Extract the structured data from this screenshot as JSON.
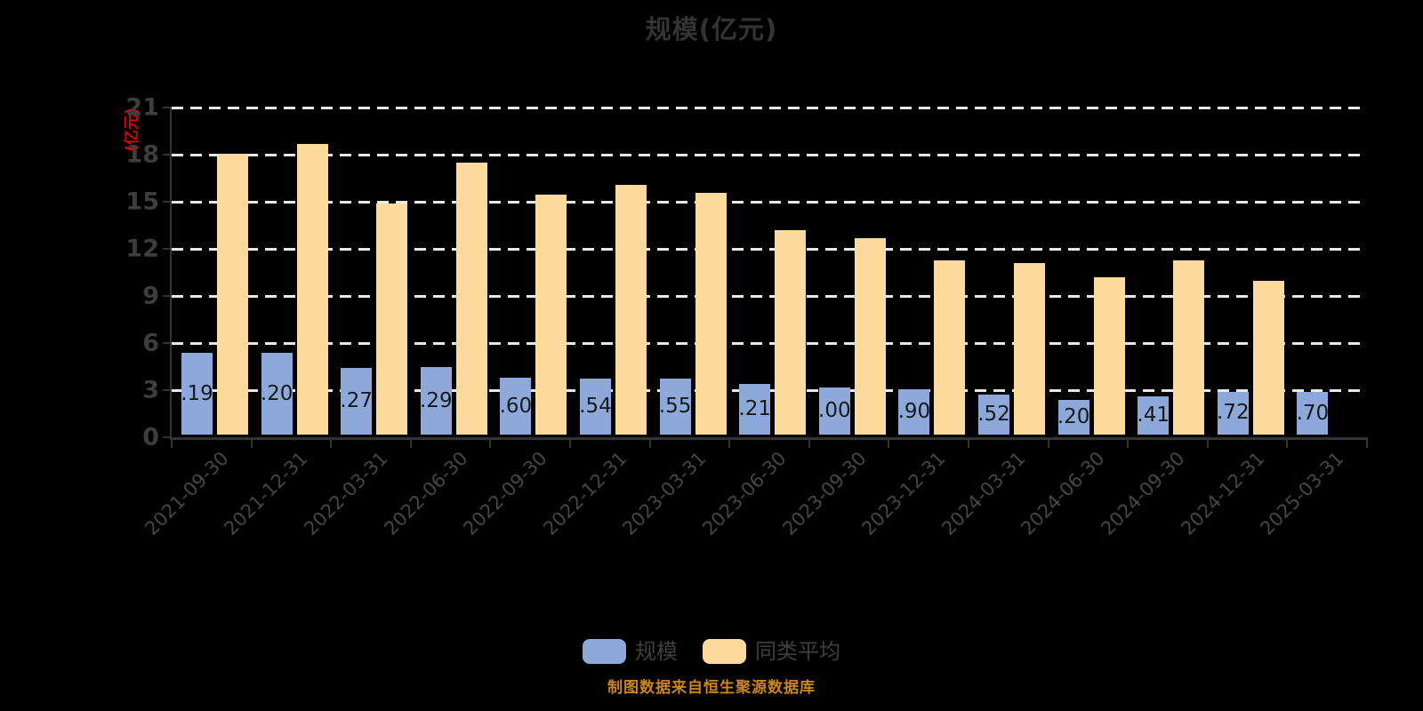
{
  "title": "规模(亿元)",
  "footer": "制图数据来自恒生聚源数据库",
  "y_axis": {
    "name": "(亿元)",
    "ticks": [
      21,
      18,
      15,
      12,
      9,
      6,
      3,
      0
    ],
    "max": 21,
    "min": 0
  },
  "legend": {
    "items": [
      {
        "label": "规模",
        "color": "#8ca9d9"
      },
      {
        "label": "同类平均",
        "color": "#fcd99c"
      }
    ]
  },
  "colors": {
    "background": "#000000",
    "title": "#333333",
    "axis": "#333333",
    "gridline": "#e8e8e8",
    "y_tick_label": "#3d3d3d",
    "x_tick_label": "#464646",
    "bar_value_label": "#1a1a1a",
    "y_axis_name": "#e60000",
    "footer": "#c8861c",
    "scale_bar": "#8ca9d9",
    "average_bar": "#fcd99c"
  },
  "chart_data": {
    "type": "bar",
    "title": "规模(亿元)",
    "categories": [
      "2021-09-30",
      "2021-12-31",
      "2022-03-31",
      "2022-06-30",
      "2022-09-30",
      "2022-12-31",
      "2023-03-31",
      "2023-06-30",
      "2023-09-30",
      "2023-12-31",
      "2024-03-31",
      "2024-06-30",
      "2024-09-30",
      "2024-12-31",
      "2025-03-31"
    ],
    "series": [
      {
        "name": "规模",
        "color": "#8ca9d9",
        "values": [
          5.19,
          5.2,
          4.27,
          4.29,
          3.6,
          3.54,
          3.55,
          3.21,
          3.0,
          2.9,
          2.52,
          2.2,
          2.41,
          2.72,
          2.7
        ],
        "visible_bar_labels": [
          ".19",
          ".20",
          ".27",
          ".29",
          ".60",
          ".54",
          ".55",
          ".21",
          ".00",
          ".90",
          ".52",
          ".20",
          ".41",
          ".72",
          ".70"
        ]
      },
      {
        "name": "同类平均",
        "color": "#fcd99c",
        "values": [
          17.9,
          18.5,
          14.7,
          17.3,
          15.3,
          15.9,
          15.4,
          13.0,
          12.5,
          11.1,
          10.9,
          10.0,
          11.1,
          9.8,
          null
        ]
      }
    ],
    "ylim": [
      0,
      21
    ],
    "y_ticks": [
      0,
      3,
      6,
      9,
      12,
      15,
      18,
      21
    ],
    "y_axis_name": "(亿元)",
    "grid": "horizontal-dashed",
    "legend_position": "bottom"
  }
}
